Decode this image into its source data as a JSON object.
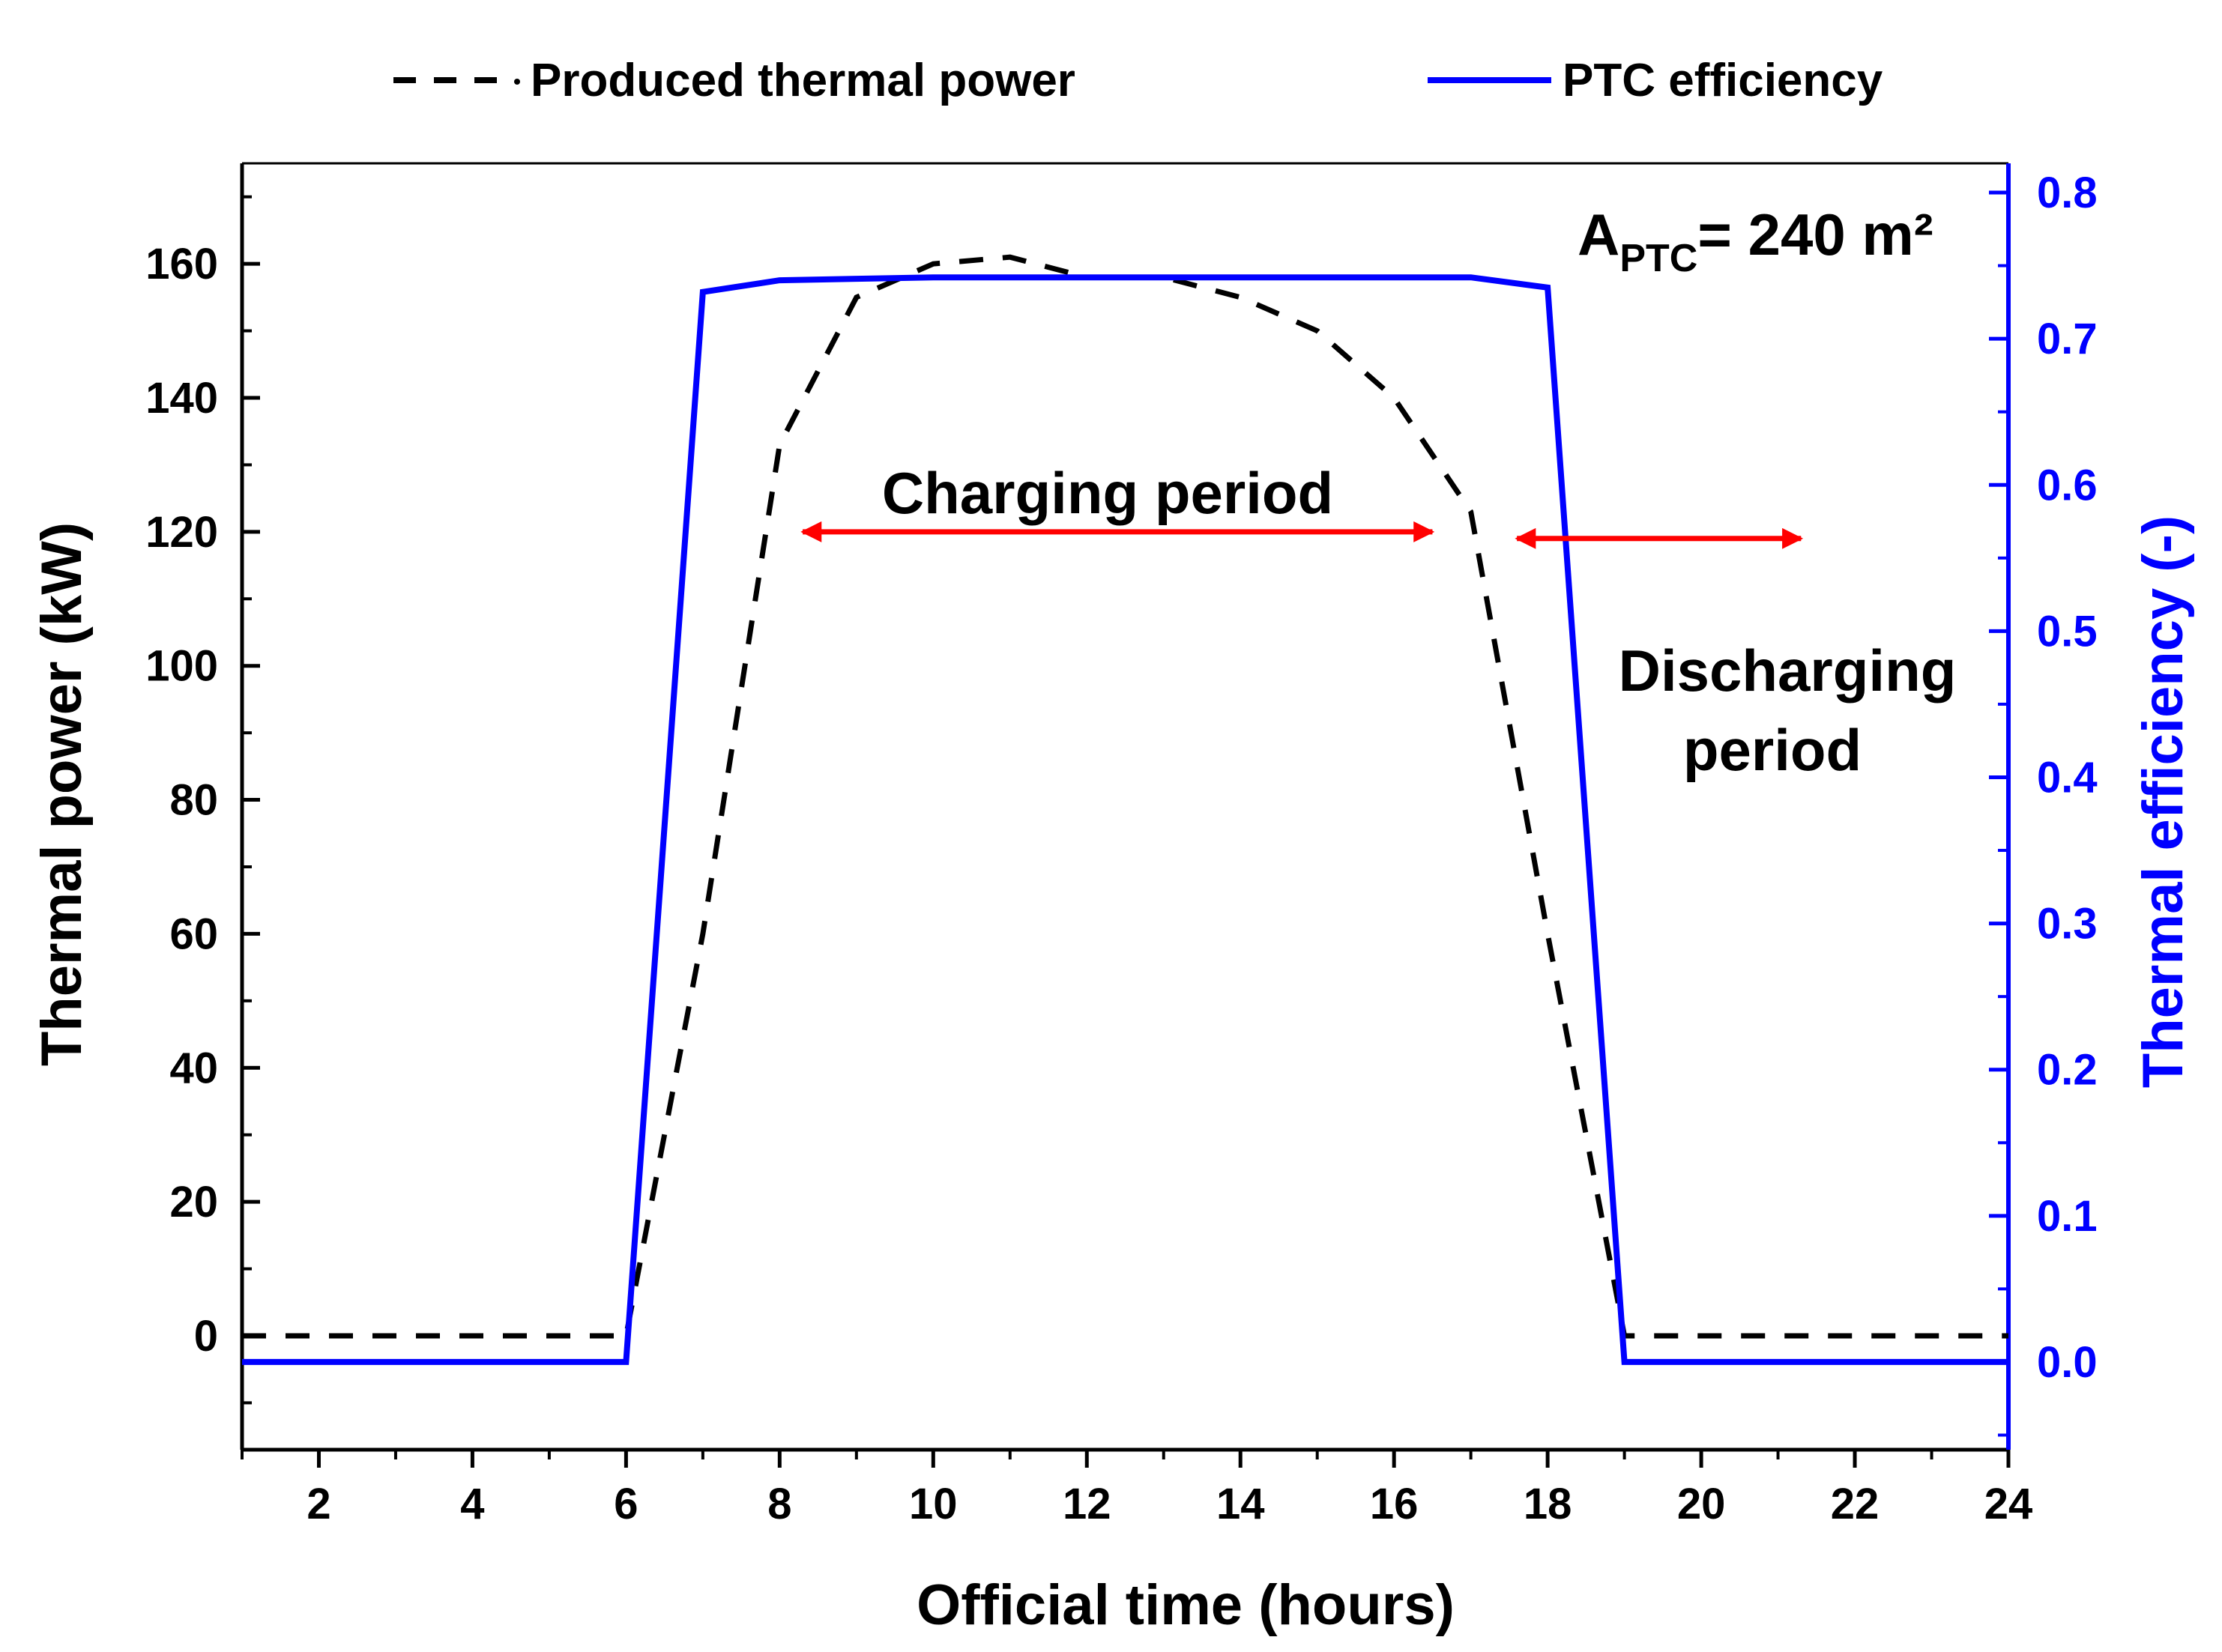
{
  "chart_data": {
    "type": "line",
    "xlabel": "Official time (hours)",
    "ylabel": "Thermal power (kW)",
    "y2label": "Thermal efficiency (-)",
    "xlim": [
      1,
      24
    ],
    "ylim": [
      -17,
      175
    ],
    "y2lim": [
      -0.06,
      0.82
    ],
    "xticks": [
      2,
      4,
      6,
      8,
      10,
      12,
      14,
      16,
      18,
      20,
      22,
      24
    ],
    "yticks": [
      0,
      20,
      40,
      60,
      80,
      100,
      120,
      140,
      160
    ],
    "y2ticks": [
      0.0,
      0.1,
      0.2,
      0.3,
      0.4,
      0.5,
      0.6,
      0.7,
      0.8
    ],
    "y2tick_labels": [
      "0.0",
      "0.1",
      "0.2",
      "0.3",
      "0.4",
      "0.5",
      "0.6",
      "0.7",
      "0.8"
    ],
    "legend_position": "top",
    "series": [
      {
        "name": "Produced thermal power",
        "axis": "left",
        "style": "dashed",
        "color": "#000000",
        "x": [
          1,
          6,
          7,
          8,
          9,
          10,
          11,
          12,
          13,
          14,
          15,
          16,
          17,
          18,
          19,
          24
        ],
        "values": [
          0,
          0,
          60,
          133,
          155,
          160,
          161,
          158,
          158,
          155,
          150,
          140,
          123,
          60,
          0,
          0
        ]
      },
      {
        "name": "PTC efficiency",
        "axis": "right",
        "style": "solid",
        "color": "#0000ff",
        "x": [
          1,
          6,
          7,
          8,
          9,
          10,
          11,
          12,
          13,
          14,
          15,
          16,
          17,
          18,
          19,
          24
        ],
        "values": [
          0,
          0,
          0.732,
          0.74,
          0.741,
          0.742,
          0.742,
          0.742,
          0.742,
          0.742,
          0.742,
          0.742,
          0.742,
          0.735,
          0,
          0
        ]
      }
    ],
    "annotations": {
      "area_main": "A",
      "area_sub": "PTC",
      "area_value": "= 240 m²",
      "charging": "Charging period",
      "discharging_line1": "Discharging",
      "discharging_line2": "period"
    },
    "arrows": [
      {
        "name": "charging",
        "x_from": 8.3,
        "x_to": 16.5,
        "y": 120
      },
      {
        "name": "discharging",
        "x_from": 17.6,
        "x_to": 21.3,
        "y": 119
      }
    ],
    "colors": {
      "left_axis": "#000000",
      "right_axis": "#0000ff",
      "arrow": "#ff0000"
    }
  }
}
